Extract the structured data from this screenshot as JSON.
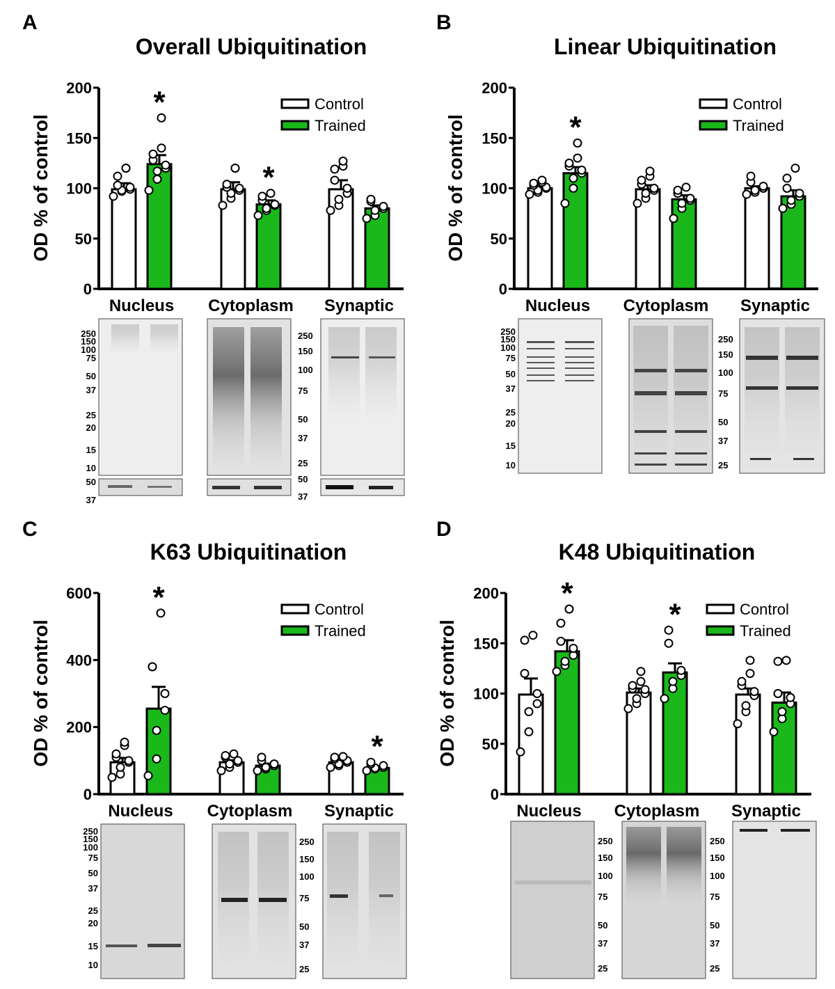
{
  "colors": {
    "control": "#ffffff",
    "trained": "#1ab81a",
    "axis": "#000000",
    "point": "#ffffff"
  },
  "legend": {
    "control": "Control",
    "trained": "Trained"
  },
  "chart_data": [
    {
      "type": "bar",
      "panel": "A",
      "title": "Overall Ubiquitination",
      "ylabel": "OD % of control",
      "categories": [
        "Nucleus",
        "Cytoplasm",
        "Synaptic"
      ],
      "ylim": [
        0,
        200
      ],
      "yticks": [
        0,
        50,
        100,
        150,
        200
      ],
      "series": [
        {
          "name": "Control",
          "values": [
            99,
            99,
            99
          ],
          "sem": [
            6,
            7,
            9
          ],
          "points": [
            [
              92,
              97,
              98,
              99,
              101,
              103,
              112,
              120,
              120
            ],
            [
              83,
              90,
              95,
              98,
              100,
              101,
              104,
              120,
              120
            ],
            [
              78,
              83,
              89,
              95,
              100,
              108,
              119,
              122,
              127
            ]
          ]
        },
        {
          "name": "Trained",
          "values": [
            124,
            84,
            80
          ],
          "sem": [
            9,
            4,
            3
          ],
          "points": [
            [
              98,
              109,
              117,
              120,
              123,
              128,
              134,
              140,
              170
            ],
            [
              73,
              78,
              80,
              83,
              84,
              88,
              92,
              95
            ],
            [
              70,
              73,
              78,
              80,
              82,
              87,
              89
            ]
          ]
        }
      ],
      "significant": [
        [
          false,
          true
        ],
        [
          false,
          true
        ],
        [
          false,
          false
        ]
      ],
      "blot_markers": [
        [
          "250",
          "150",
          "100",
          "75",
          "50",
          "37",
          "25",
          "20",
          "15",
          "10"
        ],
        [
          "250",
          "150",
          "100",
          "75",
          "50",
          "37",
          "25"
        ],
        [
          "50",
          "37"
        ]
      ]
    },
    {
      "type": "bar",
      "panel": "B",
      "title": "Linear Ubiquitination",
      "ylabel": "OD % of control",
      "categories": [
        "Nucleus",
        "Cytoplasm",
        "Synaptic"
      ],
      "ylim": [
        0,
        200
      ],
      "yticks": [
        0,
        50,
        100,
        150,
        200
      ],
      "series": [
        {
          "name": "Control",
          "values": [
            100,
            99,
            100
          ],
          "sem": [
            2,
            4,
            2
          ],
          "points": [
            [
              94,
              96,
              98,
              100,
              101,
              103,
              105,
              106,
              108
            ],
            [
              85,
              90,
              95,
              98,
              100,
              104,
              108,
              112,
              117
            ],
            [
              94,
              96,
              98,
              100,
              102,
              106,
              112
            ]
          ]
        },
        {
          "name": "Trained",
          "values": [
            115,
            89,
            92
          ],
          "sem": [
            6,
            4,
            6
          ],
          "points": [
            [
              85,
              100,
              110,
              115,
              118,
              122,
              125,
              130,
              145
            ],
            [
              70,
              80,
              85,
              88,
              90,
              95,
              98,
              101
            ],
            [
              80,
              84,
              88,
              92,
              95,
              100,
              110,
              120
            ]
          ]
        }
      ],
      "significant": [
        [
          false,
          true
        ],
        [
          false,
          false
        ],
        [
          false,
          false
        ]
      ],
      "blot_markers": [
        [
          "250",
          "150",
          "100",
          "75",
          "50",
          "37",
          "25",
          "20",
          "15",
          "10"
        ],
        [
          "250",
          "150",
          "100",
          "75",
          "50",
          "37",
          "25"
        ]
      ]
    },
    {
      "type": "bar",
      "panel": "C",
      "title": "K63 Ubiquitination",
      "ylabel": "OD % of control",
      "categories": [
        "Nucleus",
        "Cytoplasm",
        "Synaptic"
      ],
      "ylim": [
        0,
        600
      ],
      "yticks": [
        0,
        200,
        400,
        600
      ],
      "series": [
        {
          "name": "Control",
          "values": [
            95,
            95,
            95
          ],
          "sem": [
            13,
            6,
            3
          ],
          "points": [
            [
              50,
              60,
              80,
              95,
              100,
              110,
              120,
              145,
              155
            ],
            [
              70,
              80,
              90,
              95,
              100,
              110,
              115,
              120
            ],
            [
              80,
              85,
              90,
              95,
              100,
              105,
              110,
              112
            ]
          ]
        },
        {
          "name": "Trained",
          "values": [
            255,
            85,
            78
          ],
          "sem": [
            65,
            6,
            3
          ],
          "points": [
            [
              55,
              105,
              190,
              250,
              300,
              380,
              380,
              540
            ],
            [
              70,
              75,
              80,
              85,
              90,
              100,
              110
            ],
            [
              70,
              75,
              78,
              80,
              85,
              90,
              95
            ]
          ]
        }
      ],
      "significant": [
        [
          false,
          true
        ],
        [
          false,
          false
        ],
        [
          false,
          true
        ]
      ],
      "blot_markers": [
        [
          "250",
          "150",
          "100",
          "75",
          "50",
          "37",
          "25",
          "20",
          "15",
          "10"
        ],
        [
          "250",
          "150",
          "100",
          "75",
          "50",
          "37",
          "25"
        ]
      ]
    },
    {
      "type": "bar",
      "panel": "D",
      "title": "K48 Ubiquitination",
      "ylabel": "OD % of control",
      "categories": [
        "Nucleus",
        "Cytoplasm",
        "Synaptic"
      ],
      "ylim": [
        0,
        200
      ],
      "yticks": [
        0,
        50,
        100,
        150,
        200
      ],
      "series": [
        {
          "name": "Control",
          "values": [
            99,
            101,
            99
          ],
          "sem": [
            16,
            4,
            6
          ],
          "points": [
            [
              42,
              62,
              82,
              90,
              100,
              120,
              153,
              158
            ],
            [
              85,
              90,
              95,
              100,
              104,
              105,
              108,
              112,
              122
            ],
            [
              70,
              82,
              88,
              98,
              102,
              108,
              112,
              120,
              133
            ]
          ]
        },
        {
          "name": "Trained",
          "values": [
            142,
            121,
            91
          ],
          "sem": [
            11,
            9,
            10
          ],
          "points": [
            [
              122,
              128,
              132,
              138,
              145,
              152,
              170,
              184,
              184
            ],
            [
              95,
              105,
              112,
              118,
              123,
              150,
              163
            ],
            [
              62,
              75,
              82,
              90,
              96,
              100,
              132,
              133
            ]
          ]
        }
      ],
      "significant": [
        [
          false,
          true
        ],
        [
          false,
          true
        ],
        [
          false,
          false
        ]
      ],
      "blot_markers": [
        [
          "250",
          "150",
          "100",
          "75",
          "50",
          "37",
          "25"
        ],
        [
          "250",
          "150",
          "100",
          "75",
          "50",
          "37",
          "25"
        ]
      ]
    }
  ]
}
